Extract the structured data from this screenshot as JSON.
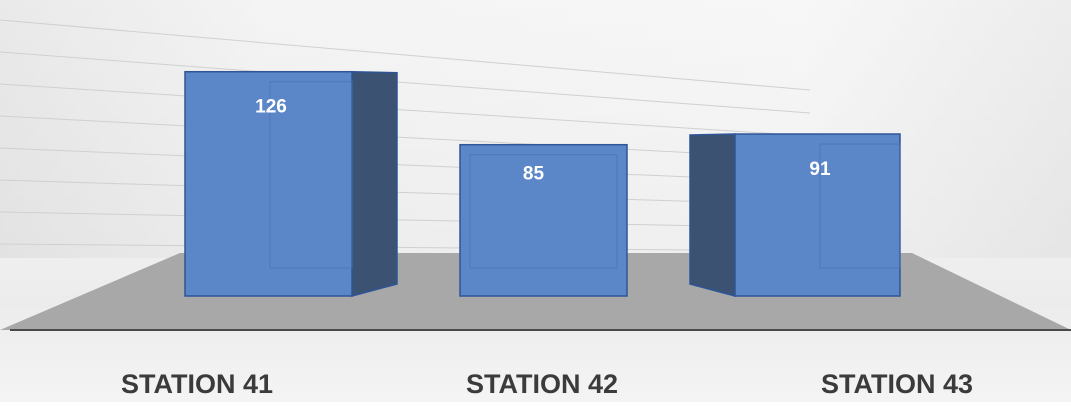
{
  "chart_data": {
    "type": "bar",
    "style": "3d",
    "categories": [
      "STATION 41",
      "STATION 42",
      "STATION 43"
    ],
    "values": [
      126,
      85,
      91
    ],
    "grid": true,
    "legend": "none",
    "colors": {
      "bar_front": "#5b86c8",
      "bar_edge": "#2f5597",
      "bar_side": "#3b5273",
      "floor": "#a9a9a9",
      "label": "#3b3b3b",
      "value_label": "#ffffff"
    }
  }
}
